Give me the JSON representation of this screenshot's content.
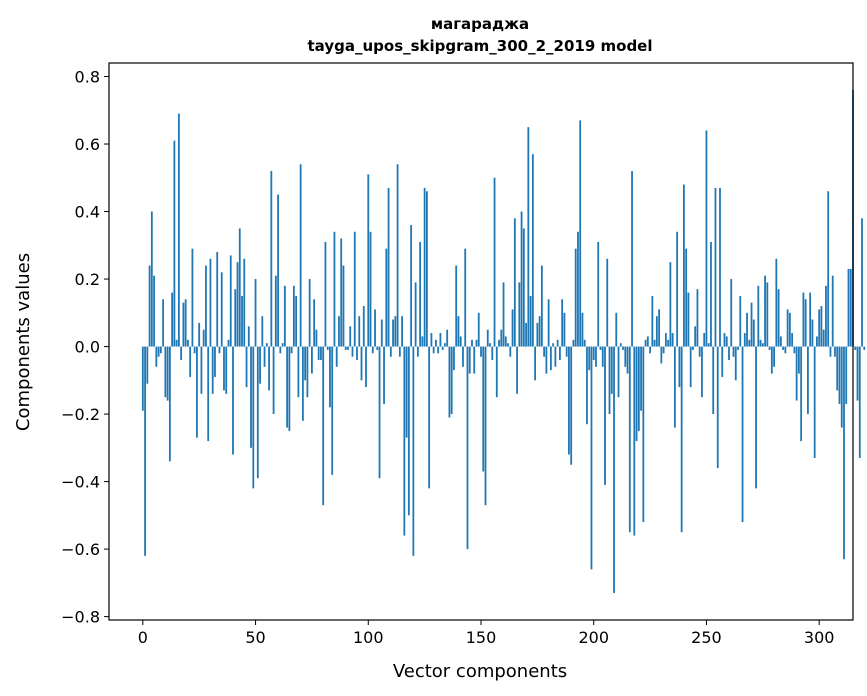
{
  "chart_data": {
    "type": "bar",
    "title": "магараджа",
    "subtitle": "tayga_upos_skipgram_300_2_2019 model",
    "xlabel": "Vector components",
    "ylabel": "Components values",
    "xlim": [
      -15,
      315
    ],
    "ylim": [
      -0.81,
      0.84
    ],
    "xticks": [
      0,
      50,
      100,
      150,
      200,
      250,
      300
    ],
    "yticks": [
      -0.8,
      -0.6,
      -0.4,
      -0.2,
      0.0,
      0.2,
      0.4,
      0.6,
      0.8
    ],
    "bar_color": "#1f77b4",
    "values": [
      -0.19,
      -0.62,
      -0.11,
      0.24,
      0.4,
      0.21,
      -0.06,
      -0.03,
      -0.02,
      0.14,
      -0.15,
      -0.16,
      -0.34,
      0.16,
      0.61,
      0.02,
      0.69,
      -0.04,
      0.13,
      0.14,
      0.02,
      -0.09,
      0.29,
      -0.02,
      -0.27,
      0.07,
      -0.14,
      0.05,
      0.24,
      -0.28,
      0.26,
      -0.14,
      -0.09,
      0.28,
      -0.02,
      0.22,
      -0.13,
      -0.14,
      0.02,
      0.27,
      -0.32,
      0.17,
      0.25,
      0.35,
      0.15,
      0.26,
      -0.12,
      0.06,
      -0.3,
      -0.42,
      0.2,
      -0.39,
      -0.11,
      0.09,
      -0.06,
      0.01,
      -0.13,
      0.52,
      -0.2,
      0.21,
      0.45,
      -0.02,
      0.01,
      0.18,
      -0.24,
      -0.25,
      -0.02,
      0.18,
      0.15,
      -0.15,
      0.54,
      -0.22,
      -0.1,
      -0.15,
      0.2,
      -0.08,
      0.14,
      0.05,
      -0.04,
      -0.04,
      -0.47,
      0.31,
      -0.01,
      -0.18,
      -0.38,
      0.34,
      -0.06,
      0.09,
      0.32,
      0.24,
      -0.01,
      -0.01,
      0.06,
      -0.03,
      0.34,
      -0.04,
      0.09,
      -0.1,
      0.12,
      -0.12,
      0.51,
      0.34,
      -0.02,
      0.11,
      -0.01,
      -0.39,
      0.08,
      -0.17,
      0.29,
      0.47,
      -0.03,
      0.08,
      0.09,
      0.54,
      -0.03,
      0.09,
      -0.56,
      -0.27,
      -0.5,
      0.36,
      -0.62,
      0.19,
      -0.03,
      0.31,
      0.03,
      0.47,
      0.46,
      -0.42,
      0.04,
      -0.02,
      0.02,
      -0.02,
      0.04,
      -0.01,
      0.01,
      0.05,
      -0.21,
      -0.2,
      -0.07,
      0.24,
      0.09,
      0.03,
      -0.06,
      0.29,
      -0.6,
      -0.08,
      0.02,
      -0.08,
      0.02,
      0.1,
      -0.03,
      -0.37,
      -0.47,
      0.05,
      0.01,
      -0.04,
      0.5,
      -0.15,
      0.02,
      0.05,
      0.19,
      0.03,
      0.01,
      -0.03,
      0.11,
      0.38,
      -0.14,
      0.19,
      0.4,
      0.35,
      0.07,
      0.65,
      0.15,
      0.57,
      -0.1,
      0.07,
      0.09,
      0.24,
      -0.03,
      -0.08,
      0.14,
      -0.07,
      0.01,
      -0.06,
      0.02,
      -0.04,
      0.14,
      0.1,
      -0.03,
      -0.32,
      -0.35,
      0.02,
      0.29,
      0.34,
      0.67,
      0.1,
      0.02,
      -0.23,
      -0.07,
      -0.66,
      -0.04,
      -0.06,
      0.31,
      -0.01,
      -0.06,
      -0.41,
      0.26,
      -0.2,
      -0.14,
      -0.73,
      0.1,
      -0.15,
      0.01,
      -0.01,
      -0.06,
      -0.08,
      -0.55,
      0.52,
      -0.56,
      -0.28,
      -0.25,
      -0.19,
      -0.52,
      0.02,
      0.03,
      -0.02,
      0.15,
      0.02,
      0.09,
      0.11,
      -0.05,
      -0.02,
      0.04,
      0.02,
      0.25,
      0.04,
      -0.24,
      0.34,
      -0.12,
      -0.55,
      0.48,
      0.29,
      0.16,
      -0.12,
      -0.01,
      0.06,
      0.17,
      -0.03,
      -0.15,
      0.04,
      0.64,
      0.01,
      0.31,
      -0.2,
      0.47,
      -0.36,
      0.47,
      -0.09,
      0.04,
      0.03,
      -0.04,
      0.2,
      -0.03,
      -0.1,
      -0.01,
      0.15,
      -0.52,
      0.04,
      0.1,
      0.02,
      0.13,
      0.08,
      -0.42,
      0.18,
      0.02,
      0.01,
      0.21,
      0.19,
      -0.01,
      -0.08,
      -0.06,
      0.26,
      0.17,
      0.03,
      -0.01,
      -0.02,
      0.11,
      0.1,
      0.04,
      -0.02,
      -0.16,
      -0.08,
      -0.28,
      0.16,
      0.14,
      -0.2,
      0.16,
      0.08,
      -0.33,
      0.03,
      0.11,
      0.12,
      0.05,
      0.18,
      0.46,
      -0.03,
      0.21,
      -0.03,
      -0.13,
      -0.17,
      -0.24,
      -0.63,
      -0.17,
      0.23,
      0.23,
      0.76,
      -0.01,
      -0.16,
      -0.33,
      0.38,
      -0.01
    ]
  }
}
